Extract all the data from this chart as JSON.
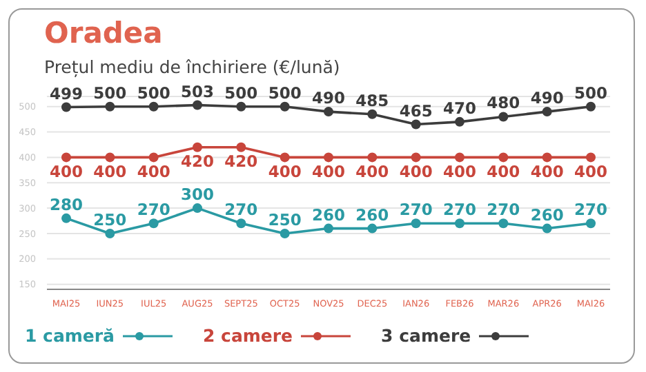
{
  "chart_data": {
    "type": "line",
    "title": "Oradea",
    "subtitle": "Prețul mediu de închiriere (€/lună)",
    "categories": [
      "MAI25",
      "IUN25",
      "IUL25",
      "AUG25",
      "SEPT25",
      "OCT25",
      "NOV25",
      "DEC25",
      "IAN26",
      "FEB26",
      "MAR26",
      "APR26",
      "MAI26"
    ],
    "series": [
      {
        "name": "1 cameră",
        "color": "#2a9aa3",
        "values": [
          280,
          250,
          270,
          300,
          270,
          250,
          260,
          260,
          270,
          270,
          270,
          260,
          270
        ]
      },
      {
        "name": "2 camere",
        "color": "#c8453b",
        "values": [
          400,
          400,
          400,
          420,
          420,
          400,
          400,
          400,
          400,
          400,
          400,
          400,
          400
        ]
      },
      {
        "name": "3 camere",
        "color": "#3c3c3c",
        "values": [
          499,
          500,
          500,
          503,
          500,
          500,
          490,
          485,
          465,
          470,
          480,
          490,
          500
        ]
      }
    ],
    "ylim": [
      140,
      520
    ],
    "yticks": [
      150,
      200,
      250,
      300,
      350,
      400,
      450,
      500
    ],
    "grid": "y",
    "legend": "bottom left",
    "marker": "circle",
    "line_style": "solid",
    "data_labels": true
  }
}
